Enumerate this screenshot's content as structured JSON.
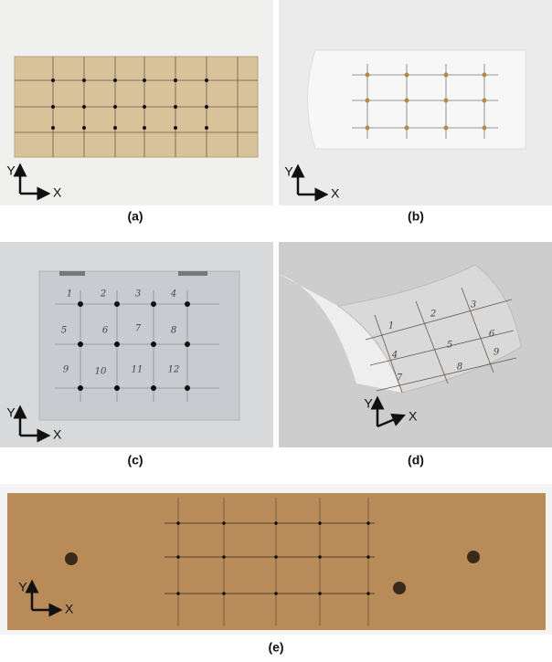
{
  "panels": [
    {
      "label": "(a)",
      "axis_x": "X",
      "axis_y": "Y"
    },
    {
      "label": "(b)",
      "axis_x": "X",
      "axis_y": "Y"
    },
    {
      "label": "(c)",
      "axis_x": "X",
      "axis_y": "Y",
      "marks": [
        "1",
        "2",
        "3",
        "4",
        "5",
        "6",
        "7",
        "8",
        "9",
        "10",
        "11",
        "12"
      ]
    },
    {
      "label": "(d)",
      "axis_x": "X",
      "axis_y": "Y",
      "marks": [
        "1",
        "2",
        "3",
        "4",
        "5",
        "6",
        "7",
        "8",
        "9"
      ]
    },
    {
      "label": "(e)",
      "axis_x": "X",
      "axis_y": "Y"
    }
  ]
}
